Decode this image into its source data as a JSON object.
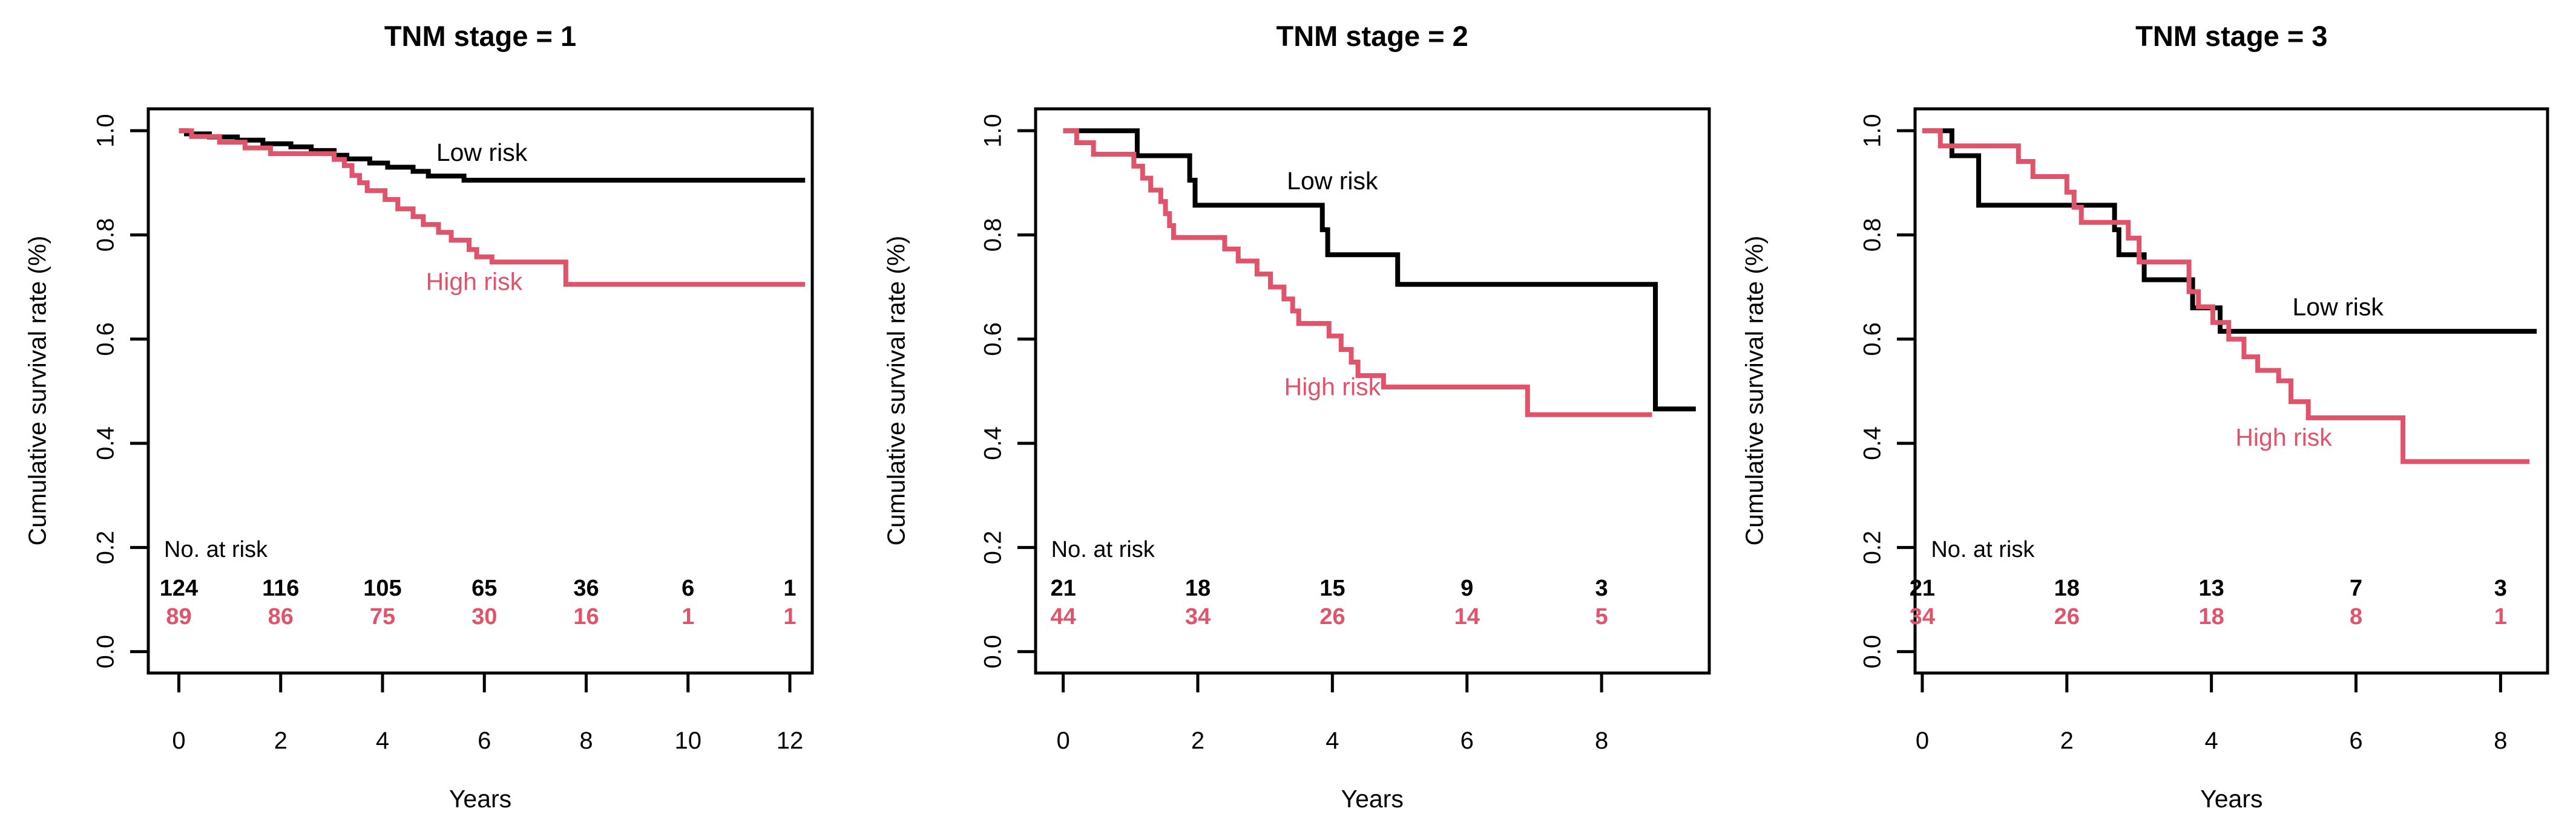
{
  "figure": {
    "background": "#ffffff",
    "accent_colors": {
      "low_risk": "#000000",
      "high_risk": "#df536b"
    },
    "ylabel": "Cumulative survival rate (%)",
    "xlabel": "Years",
    "at_risk_label": "No. at risk"
  },
  "chart_data": [
    {
      "type": "line",
      "subtype": "kaplan-meier-step",
      "title": "TNM stage = 1",
      "xlabel": "Years",
      "ylabel": "Cumulative survival rate (%)",
      "xlim": [
        -0.6,
        12.44
      ],
      "ylim": [
        -0.041,
        1.042
      ],
      "x_ticks": [
        0,
        2,
        4,
        6,
        8,
        10,
        12
      ],
      "y_ticks": [
        0.0,
        0.2,
        0.4,
        0.6,
        0.8,
        1.0
      ],
      "grid": false,
      "legend_position": "inline-labels",
      "series": [
        {
          "name": "Low risk",
          "color": "#000000",
          "end_x": 12.3,
          "label_pos": {
            "x": 5.95,
            "y": 0.955
          },
          "points": [
            [
              0,
              1
            ],
            [
              0.15,
              0.994
            ],
            [
              0.6,
              0.988
            ],
            [
              1.15,
              0.982
            ],
            [
              1.65,
              0.975
            ],
            [
              2.2,
              0.969
            ],
            [
              2.6,
              0.962
            ],
            [
              3.05,
              0.953
            ],
            [
              3.3,
              0.946
            ],
            [
              3.75,
              0.938
            ],
            [
              4.1,
              0.93
            ],
            [
              4.6,
              0.922
            ],
            [
              4.9,
              0.913
            ],
            [
              5.6,
              0.905
            ]
          ]
        },
        {
          "name": "High risk",
          "color": "#df536b",
          "end_x": 12.3,
          "label_pos": {
            "x": 5.8,
            "y": 0.707
          },
          "points": [
            [
              0,
              1
            ],
            [
              0.25,
              0.989
            ],
            [
              0.8,
              0.978
            ],
            [
              1.3,
              0.967
            ],
            [
              1.8,
              0.956
            ],
            [
              3.05,
              0.945
            ],
            [
              3.25,
              0.933
            ],
            [
              3.4,
              0.914
            ],
            [
              3.55,
              0.9
            ],
            [
              3.7,
              0.885
            ],
            [
              4.05,
              0.868
            ],
            [
              4.3,
              0.85
            ],
            [
              4.6,
              0.835
            ],
            [
              4.8,
              0.82
            ],
            [
              5.1,
              0.805
            ],
            [
              5.35,
              0.79
            ],
            [
              5.7,
              0.772
            ],
            [
              5.85,
              0.758
            ],
            [
              6.15,
              0.748
            ],
            [
              7.6,
              0.705
            ]
          ]
        }
      ],
      "at_risk": {
        "label": "No. at risk",
        "times": [
          0,
          2,
          4,
          6,
          8,
          10,
          12
        ],
        "rows": [
          {
            "name": "Low risk",
            "color": "#000000",
            "values": [
              124,
              116,
              105,
              65,
              36,
              6,
              1
            ]
          },
          {
            "name": "High risk",
            "color": "#df536b",
            "values": [
              89,
              86,
              75,
              30,
              16,
              1,
              1
            ]
          }
        ]
      }
    },
    {
      "type": "line",
      "subtype": "kaplan-meier-step",
      "title": "TNM stage = 2",
      "xlabel": "Years",
      "ylabel": "Cumulative survival rate (%)",
      "xlim": [
        -0.41,
        9.6
      ],
      "ylim": [
        -0.041,
        1.042
      ],
      "x_ticks": [
        0,
        2,
        4,
        6,
        8
      ],
      "y_ticks": [
        0.0,
        0.2,
        0.4,
        0.6,
        0.8,
        1.0
      ],
      "grid": false,
      "legend_position": "inline-labels",
      "series": [
        {
          "name": "Low risk",
          "color": "#000000",
          "end_x": 9.4,
          "label_pos": {
            "x": 4.0,
            "y": 0.9
          },
          "points": [
            [
              0,
              1
            ],
            [
              1.1,
              0.952
            ],
            [
              1.88,
              0.905
            ],
            [
              1.96,
              0.857
            ],
            [
              3.85,
              0.81
            ],
            [
              3.93,
              0.762
            ],
            [
              4.97,
              0.705
            ],
            [
              8.8,
              0.466
            ]
          ]
        },
        {
          "name": "High risk",
          "color": "#df536b",
          "end_x": 8.75,
          "label_pos": {
            "x": 4.0,
            "y": 0.505
          },
          "points": [
            [
              0,
              1
            ],
            [
              0.2,
              0.977
            ],
            [
              0.45,
              0.955
            ],
            [
              1.05,
              0.932
            ],
            [
              1.18,
              0.909
            ],
            [
              1.3,
              0.886
            ],
            [
              1.45,
              0.864
            ],
            [
              1.52,
              0.841
            ],
            [
              1.58,
              0.818
            ],
            [
              1.64,
              0.795
            ],
            [
              2.4,
              0.773
            ],
            [
              2.6,
              0.75
            ],
            [
              2.88,
              0.725
            ],
            [
              3.08,
              0.7
            ],
            [
              3.28,
              0.677
            ],
            [
              3.41,
              0.654
            ],
            [
              3.5,
              0.63
            ],
            [
              3.95,
              0.606
            ],
            [
              4.13,
              0.58
            ],
            [
              4.28,
              0.556
            ],
            [
              4.38,
              0.53
            ],
            [
              4.76,
              0.508
            ],
            [
              6.9,
              0.455
            ]
          ]
        }
      ],
      "at_risk": {
        "label": "No. at risk",
        "times": [
          0,
          2,
          4,
          6,
          8
        ],
        "rows": [
          {
            "name": "Low risk",
            "color": "#000000",
            "values": [
              21,
              18,
              15,
              9,
              3
            ]
          },
          {
            "name": "High risk",
            "color": "#df536b",
            "values": [
              44,
              34,
              26,
              14,
              5
            ]
          }
        ]
      }
    },
    {
      "type": "line",
      "subtype": "kaplan-meier-step",
      "title": "TNM stage = 3",
      "xlabel": "Years",
      "ylabel": "Cumulative survival rate (%)",
      "xlim": [
        -0.1,
        8.65
      ],
      "ylim": [
        -0.041,
        1.042
      ],
      "x_ticks": [
        0,
        2,
        4,
        6,
        8
      ],
      "y_ticks": [
        0.0,
        0.2,
        0.4,
        0.6,
        0.8,
        1.0
      ],
      "grid": false,
      "legend_position": "inline-labels",
      "series": [
        {
          "name": "Low risk",
          "color": "#000000",
          "end_x": 8.5,
          "label_pos": {
            "x": 5.75,
            "y": 0.658
          },
          "points": [
            [
              0,
              1
            ],
            [
              0.41,
              0.952
            ],
            [
              0.78,
              0.857
            ],
            [
              2.66,
              0.81
            ],
            [
              2.72,
              0.762
            ],
            [
              3.07,
              0.714
            ],
            [
              3.74,
              0.66
            ],
            [
              4.12,
              0.615
            ]
          ]
        },
        {
          "name": "High risk",
          "color": "#df536b",
          "end_x": 8.4,
          "label_pos": {
            "x": 5.0,
            "y": 0.408
          },
          "points": [
            [
              0,
              1
            ],
            [
              0.25,
              0.971
            ],
            [
              1.33,
              0.941
            ],
            [
              1.53,
              0.912
            ],
            [
              2.0,
              0.882
            ],
            [
              2.1,
              0.853
            ],
            [
              2.2,
              0.824
            ],
            [
              2.85,
              0.794
            ],
            [
              3.0,
              0.748
            ],
            [
              3.69,
              0.691
            ],
            [
              3.82,
              0.662
            ],
            [
              4.02,
              0.632
            ],
            [
              4.24,
              0.6
            ],
            [
              4.45,
              0.566
            ],
            [
              4.64,
              0.54
            ],
            [
              4.93,
              0.52
            ],
            [
              5.1,
              0.48
            ],
            [
              5.34,
              0.449
            ],
            [
              6.65,
              0.365
            ]
          ]
        }
      ],
      "at_risk": {
        "label": "No. at risk",
        "times": [
          0,
          2,
          4,
          6,
          8
        ],
        "rows": [
          {
            "name": "Low risk",
            "color": "#000000",
            "values": [
              21,
              18,
              13,
              7,
              3
            ]
          },
          {
            "name": "High risk",
            "color": "#df536b",
            "values": [
              34,
              26,
              18,
              8,
              1
            ]
          }
        ]
      }
    }
  ]
}
